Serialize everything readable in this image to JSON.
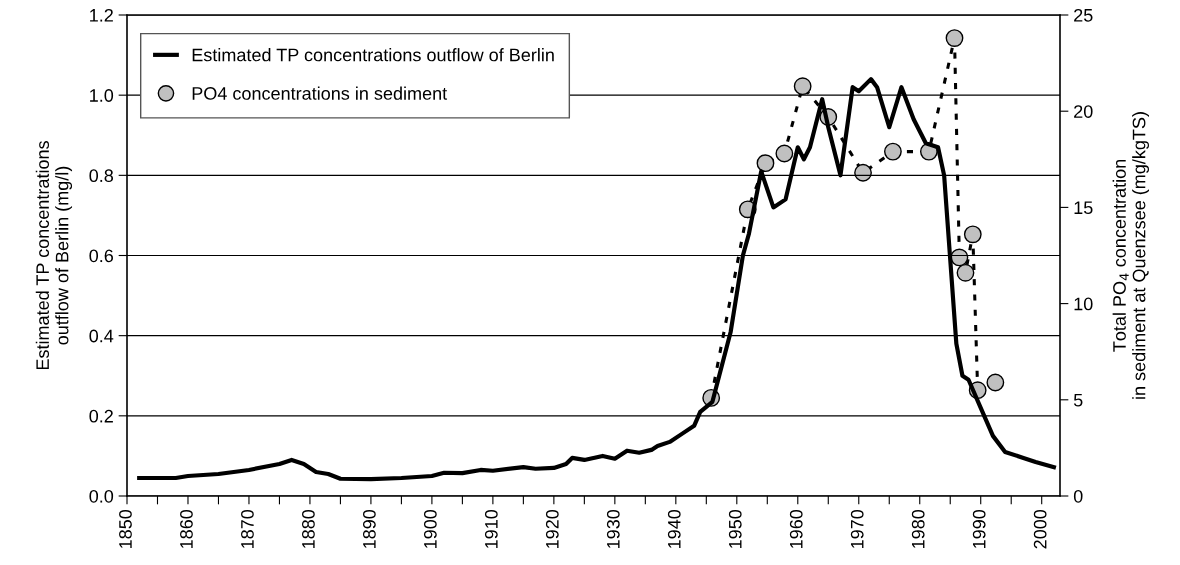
{
  "chart_data": {
    "type": "line",
    "ylabel": "Estimated TP concentrations\noutflow of Berlin (mg/l)",
    "y2label": "Total PO$_{4}$ concentration\nin sediment at Quenzsee (mg/kgTS)",
    "series": [
      {
        "name": "Estimated TP concentrations outflow of Berlin",
        "color": "#000000",
        "marker": "none",
        "line_style": "solid",
        "x": [
          1852,
          1858,
          1860,
          1865,
          1870,
          1875,
          1877,
          1879,
          1881,
          1883,
          1885,
          1890,
          1895,
          1900,
          1902,
          1905,
          1908,
          1910,
          1915,
          1917,
          1920,
          1922,
          1923,
          1925,
          1928,
          1930,
          1932,
          1934,
          1936,
          1937,
          1939,
          1941,
          1943,
          1944,
          1946,
          1949,
          1951,
          1952,
          1954,
          1956,
          1958,
          1960,
          1961,
          1962,
          1964,
          1965,
          1967,
          1969,
          1970,
          1972,
          1973,
          1975,
          1977,
          1979,
          1981,
          1983,
          1984,
          1986,
          1987,
          1988,
          1990,
          1992,
          1994,
          1997,
          1999,
          2002
        ],
        "values": [
          0.045,
          0.045,
          0.05,
          0.055,
          0.065,
          0.08,
          0.09,
          0.08,
          0.06,
          0.055,
          0.043,
          0.042,
          0.045,
          0.05,
          0.058,
          0.057,
          0.065,
          0.063,
          0.072,
          0.068,
          0.07,
          0.08,
          0.095,
          0.09,
          0.1,
          0.093,
          0.113,
          0.108,
          0.115,
          0.125,
          0.135,
          0.155,
          0.175,
          0.21,
          0.235,
          0.41,
          0.6,
          0.655,
          0.81,
          0.72,
          0.74,
          0.87,
          0.84,
          0.87,
          0.99,
          0.92,
          0.8,
          1.02,
          1.01,
          1.04,
          1.02,
          0.92,
          1.02,
          0.94,
          0.88,
          0.87,
          0.8,
          0.38,
          0.3,
          0.29,
          0.22,
          0.15,
          0.11,
          0.095,
          0.085,
          0.072
        ]
      },
      {
        "name": "PO4 concentrations in sediment",
        "axis": "y2",
        "color": "#c0c0c0",
        "marker": "circle",
        "line_style": "dotted",
        "x": [
          1945.8,
          1951.8,
          1954.7,
          1957.8,
          1960.8,
          1965,
          1970.7,
          1975.6,
          1981.5,
          1985.7,
          1986.5,
          1987.5,
          1988.7,
          1989.5,
          1992.4
        ],
        "values": [
          5.1,
          14.9,
          17.3,
          17.8,
          21.3,
          19.7,
          16.8,
          17.9,
          17.9,
          23.8,
          12.4,
          11.6,
          13.6,
          5.5,
          5.9
        ]
      }
    ],
    "xlim": [
      1850,
      2003
    ],
    "xticks": [
      1850,
      {
        "value": 1855,
        "label": null
      },
      1860,
      {
        "value": 1865,
        "label": null
      },
      1870,
      {
        "value": 1875,
        "label": null
      },
      1880,
      {
        "value": 1885,
        "label": null
      },
      1890,
      {
        "value": 1895,
        "label": null
      },
      1900,
      {
        "value": 1905,
        "label": null
      },
      1910,
      {
        "value": 1915,
        "label": null
      },
      1920,
      {
        "value": 1925,
        "label": null
      },
      1930,
      {
        "value": 1935,
        "label": null
      },
      1940,
      {
        "value": 1945,
        "label": null
      },
      1950,
      {
        "value": 1955,
        "label": null
      },
      1960,
      {
        "value": 1965,
        "label": null
      },
      1970,
      {
        "value": 1975,
        "label": null
      },
      1980,
      {
        "value": 1985,
        "label": null
      },
      1990,
      {
        "value": 1995,
        "label": null
      },
      2000
    ],
    "ylim": [
      0,
      1.2
    ],
    "yticks": [
      {
        "value": 0,
        "label": "0.0"
      },
      0.2,
      0.4,
      0.6,
      0.8,
      {
        "value": 1,
        "label": "1.0"
      },
      {
        "value": 1.2,
        "label": "1.2"
      }
    ],
    "y2lim": [
      0,
      25
    ],
    "y2ticks": [
      0,
      5,
      10,
      15,
      20,
      25
    ],
    "grid": "y",
    "legend": "top left"
  }
}
